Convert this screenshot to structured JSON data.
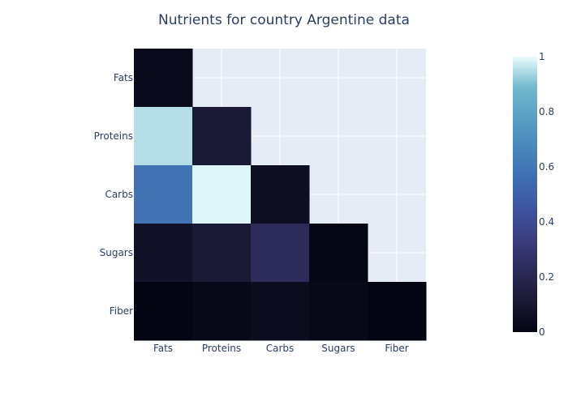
{
  "chart_data": {
    "type": "heatmap",
    "title": "Nutrients for country Argentine data",
    "x_categories": [
      "Fats",
      "Proteins",
      "Carbs",
      "Sugars",
      "Fiber"
    ],
    "y_categories": [
      "Fats",
      "Proteins",
      "Carbs",
      "Sugars",
      "Fiber"
    ],
    "z": [
      [
        0.03,
        null,
        null,
        null,
        null
      ],
      [
        0.95,
        0.12,
        null,
        null,
        null
      ],
      [
        0.58,
        0.99,
        0.05,
        null,
        null
      ],
      [
        0.07,
        0.12,
        0.23,
        0.01,
        null
      ],
      [
        0.0,
        0.02,
        0.04,
        0.02,
        0.0
      ]
    ],
    "zlim": [
      0,
      1
    ],
    "colorscale": "ice",
    "colorbar_ticks": [
      0,
      0.2,
      0.4,
      0.6,
      0.8,
      1
    ],
    "colorbar_tick_labels": [
      "0",
      "0.2",
      "0.4",
      "0.6",
      "0.8",
      "1"
    ],
    "plot_bgcolor": "#e5ecf6",
    "grid": true
  }
}
